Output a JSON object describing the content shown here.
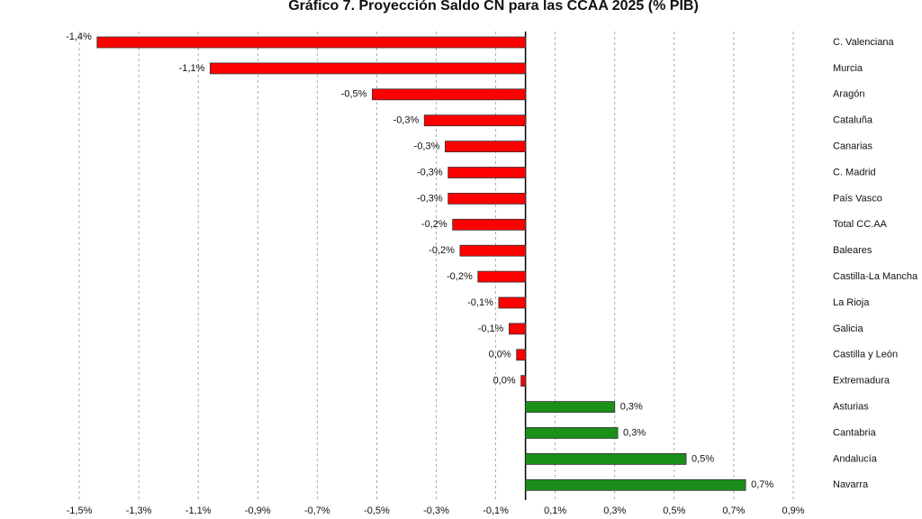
{
  "chart_data": {
    "type": "hbar",
    "title": "Gráfico 7. Proyección Saldo CN para las CCAA 2025 (% PIB)",
    "categories": [
      "C. Valenciana",
      "Murcia",
      "Aragón",
      "Cataluña",
      "Canarias",
      "C. Madrid",
      "País Vasco",
      "Total CC.AA",
      "Baleares",
      "Castilla-La Mancha",
      "La Rioja",
      "Galicia",
      "Castilla y León",
      "Extremadura",
      "Asturias",
      "Cantabria",
      "Andalucía",
      "Navarra"
    ],
    "values": [
      -1.44,
      -1.06,
      -0.515,
      -0.34,
      -0.27,
      -0.26,
      -0.26,
      -0.245,
      -0.22,
      -0.16,
      -0.09,
      -0.055,
      -0.03,
      -0.015,
      0.3,
      0.31,
      0.54,
      0.74
    ],
    "value_labels": [
      "-1,4%",
      "-1,1%",
      "-0,5%",
      "-0,3%",
      "-0,3%",
      "-0,3%",
      "-0,3%",
      "-0,2%",
      "-0,2%",
      "-0,2%",
      "-0,1%",
      "-0,1%",
      "0,0%",
      "0,0%",
      "0,3%",
      "0,3%",
      "0,5%",
      "0,7%"
    ],
    "negative_color": "#ff0000",
    "positive_color": "#1a8f1a",
    "xlim": [
      -1.5,
      0.9
    ],
    "xticks": [
      {
        "value": -1.5,
        "label": "-1,5%"
      },
      {
        "value": -1.3,
        "label": "-1,3%"
      },
      {
        "value": -1.1,
        "label": "-1,1%"
      },
      {
        "value": -0.9,
        "label": "-0,9%"
      },
      {
        "value": -0.7,
        "label": "-0,7%"
      },
      {
        "value": -0.5,
        "label": "-0,5%"
      },
      {
        "value": -0.3,
        "label": "-0,3%"
      },
      {
        "value": -0.1,
        "label": "-0,1%"
      },
      {
        "value": 0.1,
        "label": "0,1%"
      },
      {
        "value": 0.3,
        "label": "0,3%"
      },
      {
        "value": 0.5,
        "label": "0,5%"
      },
      {
        "value": 0.7,
        "label": "0,7%"
      },
      {
        "value": 0.9,
        "label": "0,9%"
      }
    ],
    "grid": true
  }
}
